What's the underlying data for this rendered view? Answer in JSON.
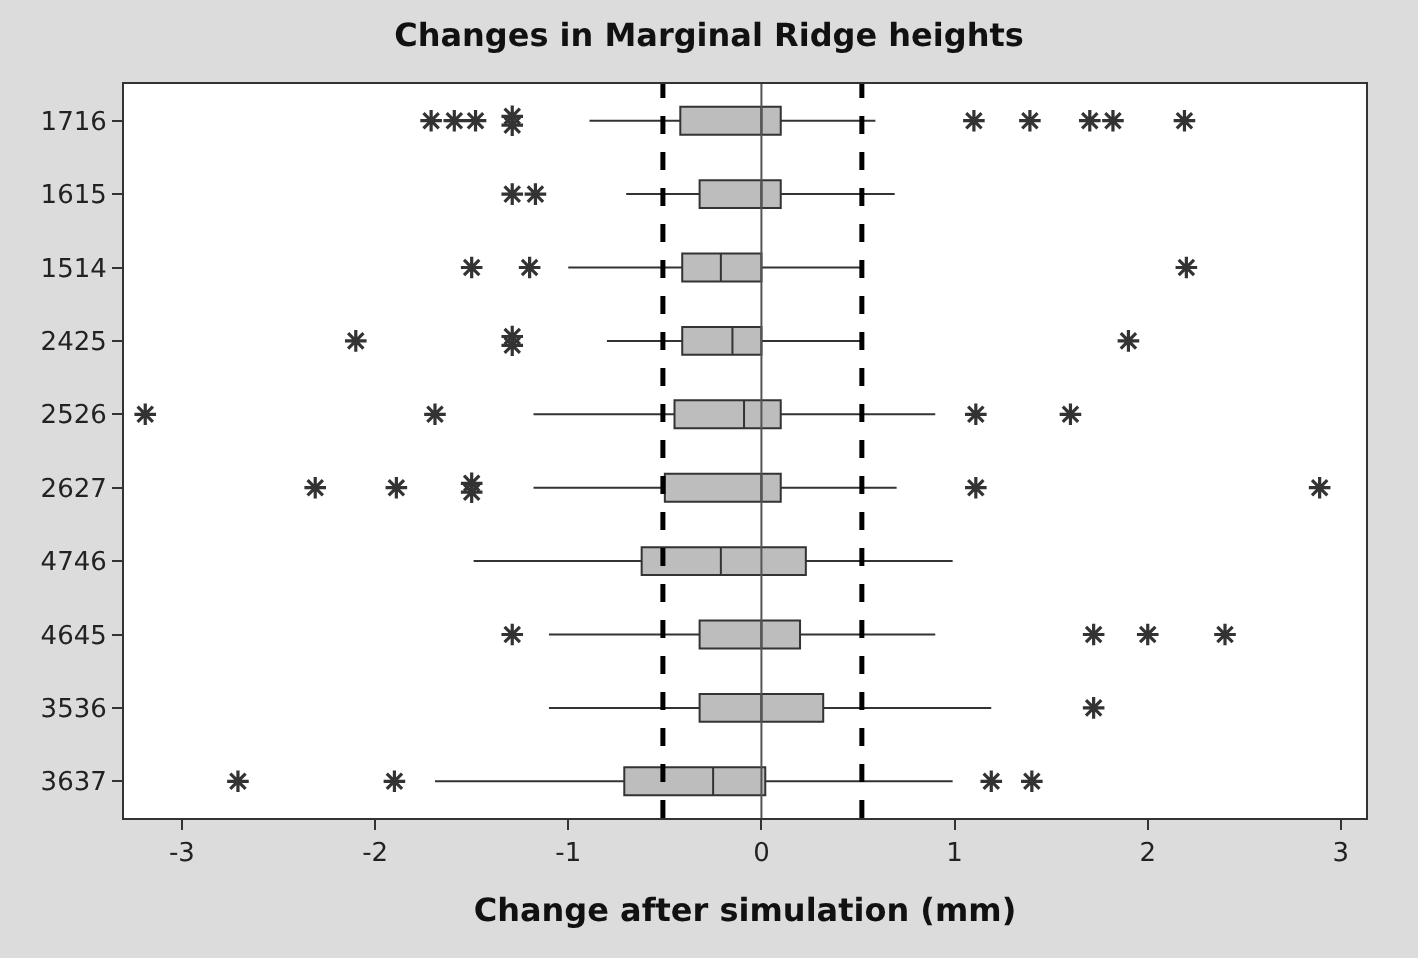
{
  "chart_data": {
    "type": "box",
    "orientation": "horizontal",
    "title": "Changes in Marginal Ridge heights",
    "xlabel": "Change after simulation (mm)",
    "categories": [
      "1716",
      "1615",
      "1514",
      "2425",
      "2526",
      "2627",
      "4746",
      "4645",
      "3536",
      "3637"
    ],
    "color": "#bdbdbd",
    "boxes": [
      {
        "low": -0.89,
        "q1": -0.42,
        "median": 0.0,
        "q3": 0.1,
        "high": 0.59,
        "outliers": [
          -1.71,
          -1.59,
          -1.48,
          -1.29,
          -1.29,
          1.1,
          1.39,
          1.7,
          1.82,
          2.19
        ]
      },
      {
        "low": -0.7,
        "q1": -0.32,
        "median": 0.0,
        "q3": 0.1,
        "high": 0.69,
        "outliers": [
          -1.29,
          -1.17
        ]
      },
      {
        "low": -1.0,
        "q1": -0.41,
        "median": -0.21,
        "q3": 0.0,
        "high": 0.52,
        "outliers": [
          -1.5,
          -1.2,
          2.2
        ]
      },
      {
        "low": -0.8,
        "q1": -0.41,
        "median": -0.15,
        "q3": 0.0,
        "high": 0.52,
        "outliers": [
          -2.1,
          -1.29,
          -1.29,
          1.9
        ]
      },
      {
        "low": -1.18,
        "q1": -0.45,
        "median": -0.09,
        "q3": 0.1,
        "high": 0.9,
        "outliers": [
          -3.19,
          -1.69,
          1.11,
          1.6
        ]
      },
      {
        "low": -1.18,
        "q1": -0.5,
        "median": 0.0,
        "q3": 0.1,
        "high": 0.7,
        "outliers": [
          -2.31,
          -1.89,
          -1.5,
          -1.5,
          1.11,
          2.89
        ]
      },
      {
        "low": -1.49,
        "q1": -0.62,
        "median": -0.21,
        "q3": 0.23,
        "high": 0.99
      },
      {
        "low": -1.1,
        "q1": -0.32,
        "median": 0.0,
        "q3": 0.2,
        "high": 0.9,
        "outliers": [
          -1.29,
          1.72,
          2.0,
          2.4
        ]
      },
      {
        "low": -1.1,
        "q1": -0.32,
        "median": 0.0,
        "q3": 0.32,
        "high": 1.19,
        "outliers": [
          1.72
        ]
      },
      {
        "low": -1.69,
        "q1": -0.71,
        "median": -0.25,
        "q3": 0.02,
        "high": 0.99,
        "outliers": [
          -2.71,
          -1.9,
          1.19,
          1.4
        ]
      }
    ],
    "xlim": [
      -3.3,
      3.13
    ],
    "xticks": [
      -3,
      -2,
      -1,
      0,
      1,
      2,
      3
    ],
    "ref_lines": [
      {
        "axis": "x",
        "value": -0.51,
        "line_style": "dashed",
        "color": "#000000"
      },
      {
        "axis": "x",
        "value": 0.52,
        "line_style": "dashed",
        "color": "#000000"
      },
      {
        "axis": "x",
        "value": 0,
        "line_style": "solid",
        "color": "#555555"
      }
    ],
    "marker": "star"
  }
}
